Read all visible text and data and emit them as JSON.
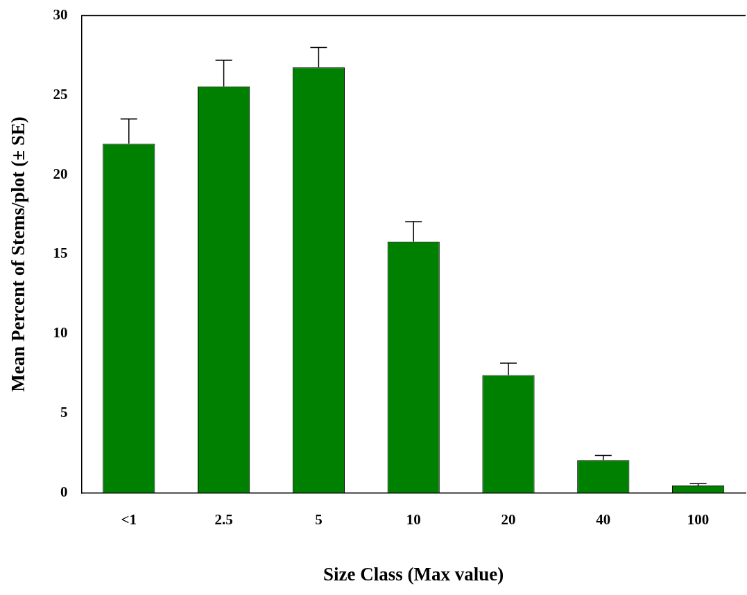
{
  "chart_data": {
    "type": "bar",
    "xlabel": "Size Class (Max value)",
    "ylabel": "Mean Percent of Stems/plot (± SE)",
    "categories": [
      "<1",
      "2.5",
      "5",
      "10",
      "20",
      "40",
      "100"
    ],
    "values": [
      21.95,
      25.55,
      26.75,
      15.8,
      7.4,
      2.05,
      0.45
    ],
    "errors": [
      [
        21.95,
        23.5
      ],
      [
        25.55,
        27.2
      ],
      [
        26.75,
        28.0
      ],
      [
        15.8,
        17.05
      ],
      [
        7.4,
        8.15
      ],
      [
        2.05,
        2.35
      ],
      [
        0.45,
        0.57
      ]
    ],
    "color": "#008000",
    "ylim": [
      0,
      30
    ],
    "yticks": [
      0,
      5,
      10,
      15,
      20,
      25,
      30
    ],
    "grid": false,
    "legend": false
  }
}
